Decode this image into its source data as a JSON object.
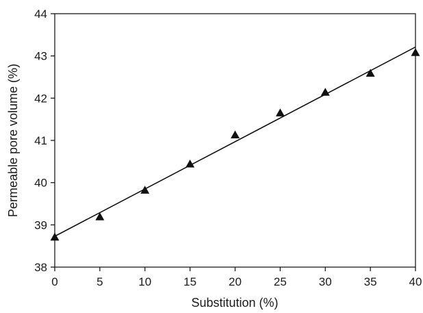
{
  "chart_data": {
    "type": "scatter",
    "xlabel": "Substitution (%)",
    "ylabel": "Permeable pore volume (%)",
    "xlim": [
      0,
      40
    ],
    "ylim": [
      38,
      44
    ],
    "x_ticks": [
      0,
      5,
      10,
      15,
      20,
      25,
      30,
      35,
      40
    ],
    "y_ticks": [
      38,
      39,
      40,
      41,
      42,
      43,
      44
    ],
    "grid": false,
    "legend": "none",
    "series": [
      {
        "marker": "triangle",
        "color": "#111111",
        "points": [
          {
            "x": 0,
            "y": 38.71
          },
          {
            "x": 5,
            "y": 39.19
          },
          {
            "x": 10,
            "y": 39.82
          },
          {
            "x": 15,
            "y": 40.44
          },
          {
            "x": 20,
            "y": 41.13
          },
          {
            "x": 25,
            "y": 41.65
          },
          {
            "x": 30,
            "y": 42.14
          },
          {
            "x": 35,
            "y": 42.59
          },
          {
            "x": 40,
            "y": 43.08
          }
        ]
      }
    ],
    "fit_line": {
      "type": "linear",
      "color": "#111111",
      "x": [
        0,
        40
      ],
      "y": [
        38.73,
        43.21
      ]
    }
  }
}
